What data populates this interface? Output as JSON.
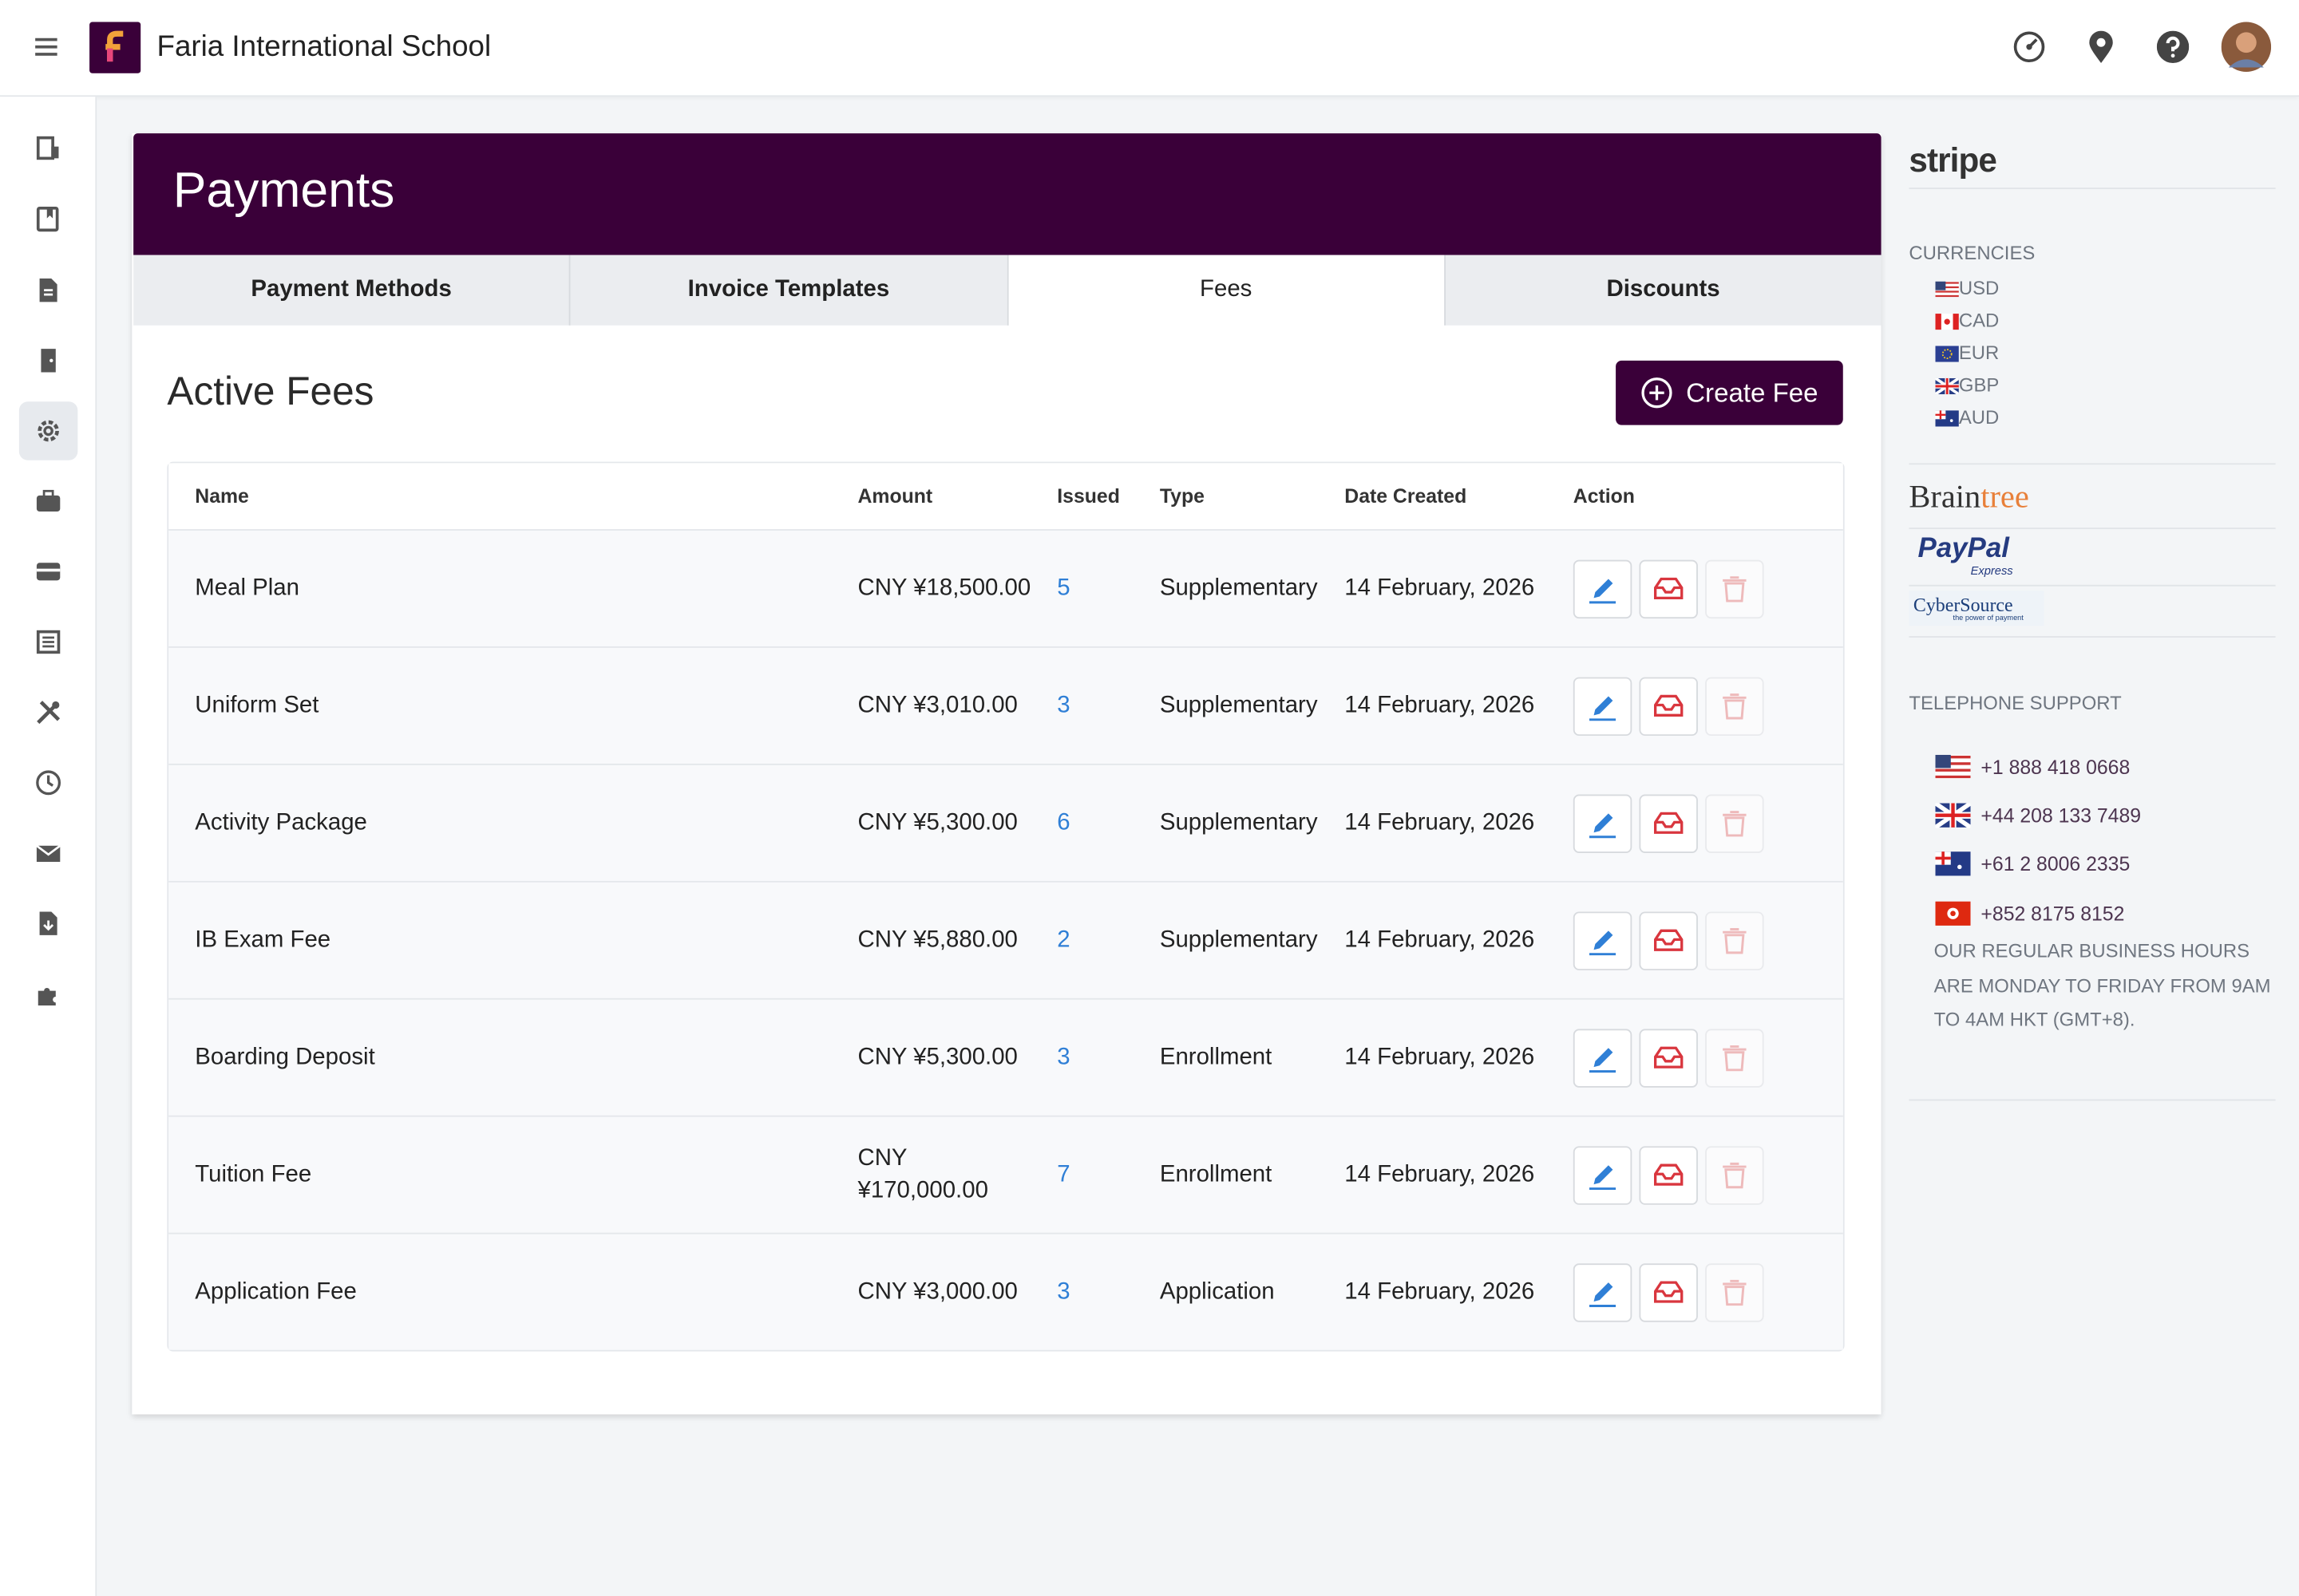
{
  "header": {
    "school_name": "Faria International School"
  },
  "page": {
    "title": "Payments"
  },
  "tabs": [
    "Payment Methods",
    "Invoice Templates",
    "Fees",
    "Discounts"
  ],
  "section": {
    "title": "Active Fees",
    "create_button": "Create Fee"
  },
  "table": {
    "columns": [
      "Name",
      "Amount",
      "Issued",
      "Type",
      "Date Created",
      "Action"
    ],
    "rows": [
      [
        "Meal Plan",
        "CNY ¥18,500.00",
        5,
        "Supplementary",
        "14 February, 2026"
      ],
      [
        "Uniform Set",
        "CNY ¥3,010.00",
        3,
        "Supplementary",
        "14 February, 2026"
      ],
      [
        "Activity Package",
        "CNY ¥5,300.00",
        6,
        "Supplementary",
        "14 February, 2026"
      ],
      [
        "IB Exam Fee",
        "CNY ¥5,880.00",
        2,
        "Supplementary",
        "14 February, 2026"
      ],
      [
        "Boarding Deposit",
        "CNY ¥5,300.00",
        3,
        "Enrollment",
        "14 February, 2026"
      ],
      [
        "Tuition Fee",
        "CNY ¥170,000.00",
        7,
        "Enrollment",
        "14 February, 2026"
      ],
      [
        "Application Fee",
        "CNY ¥3,000.00",
        3,
        "Application",
        "14 February, 2026"
      ]
    ]
  },
  "sidebar": {
    "stripe_logo": "stripe",
    "currencies_heading": "CURRENCIES",
    "currencies": [
      "USD",
      "CAD",
      "EUR",
      "GBP",
      "AUD"
    ],
    "braintree_logo": [
      "Brain",
      "tree"
    ],
    "paypal_logo": [
      "PayPal",
      "Express"
    ],
    "cybersource_logo": [
      "CyberSource",
      "the power of payment"
    ],
    "telephone_heading": "TELEPHONE SUPPORT",
    "phones": [
      "+1 888 418 0668",
      "+44 208 133 7489",
      "+61 2 8006 2335",
      "+852 8175 8152"
    ],
    "hours": "OUR REGULAR BUSINESS HOURS ARE MONDAY TO FRIDAY FROM 9AM TO 4AM HKT (GMT+8)."
  }
}
